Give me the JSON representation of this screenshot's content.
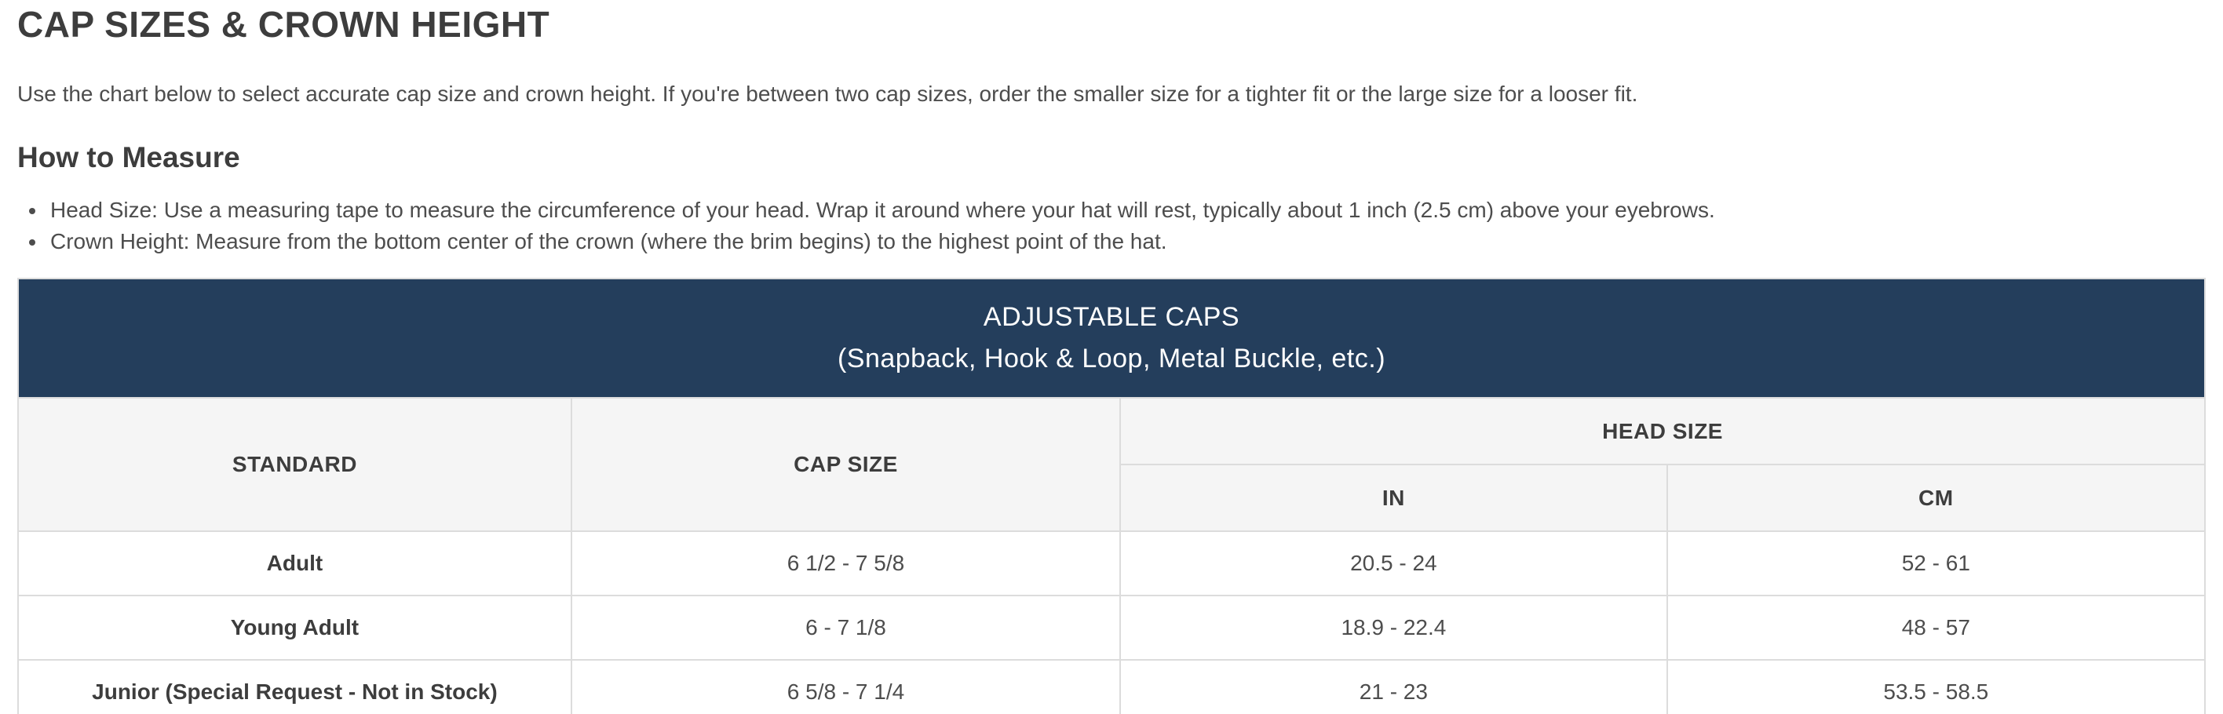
{
  "page": {
    "title": "CAP SIZES & CROWN HEIGHT",
    "intro": "Use the chart below to select accurate cap size and crown height. If you're between two cap sizes, order the smaller size for a tighter fit or the large size for a looser fit."
  },
  "how_to_measure": {
    "heading": "How to Measure",
    "bullets": [
      "Head Size: Use a measuring tape to measure the circumference of your head. Wrap it around where your hat will rest, typically about 1 inch (2.5 cm) above your eyebrows.",
      "Crown Height: Measure from the bottom center of the crown (where the brim begins) to the highest point of the hat."
    ]
  },
  "size_table": {
    "banner": {
      "title": "ADJUSTABLE CAPS",
      "subtitle": "(Snapback, Hook & Loop, Metal Buckle, etc.)"
    },
    "columns": {
      "standard": "STANDARD",
      "cap_size": "CAP SIZE",
      "head_size": "HEAD SIZE",
      "head_size_in": "IN",
      "head_size_cm": "CM"
    },
    "rows": [
      {
        "standard": "Adult",
        "cap_size": "6 1/2 - 7 5/8",
        "head_size_in": "20.5 - 24",
        "head_size_cm": "52 - 61"
      },
      {
        "standard": "Young Adult",
        "cap_size": "6 - 7 1/8",
        "head_size_in": "18.9 - 22.4",
        "head_size_cm": "48 - 57"
      },
      {
        "standard": "Junior (Special Request - Not in Stock)",
        "cap_size": "6 5/8 - 7 1/4",
        "head_size_in": "21 - 23",
        "head_size_cm": "53.5 - 58.5"
      }
    ]
  },
  "colors": {
    "banner_bg": "#243E5C",
    "banner_text": "#FFFFFF",
    "header_bg": "#F5F5F5",
    "border": "#DCDCDC",
    "body_text": "#4D4D4D",
    "heading_text": "#3D3D3D"
  }
}
